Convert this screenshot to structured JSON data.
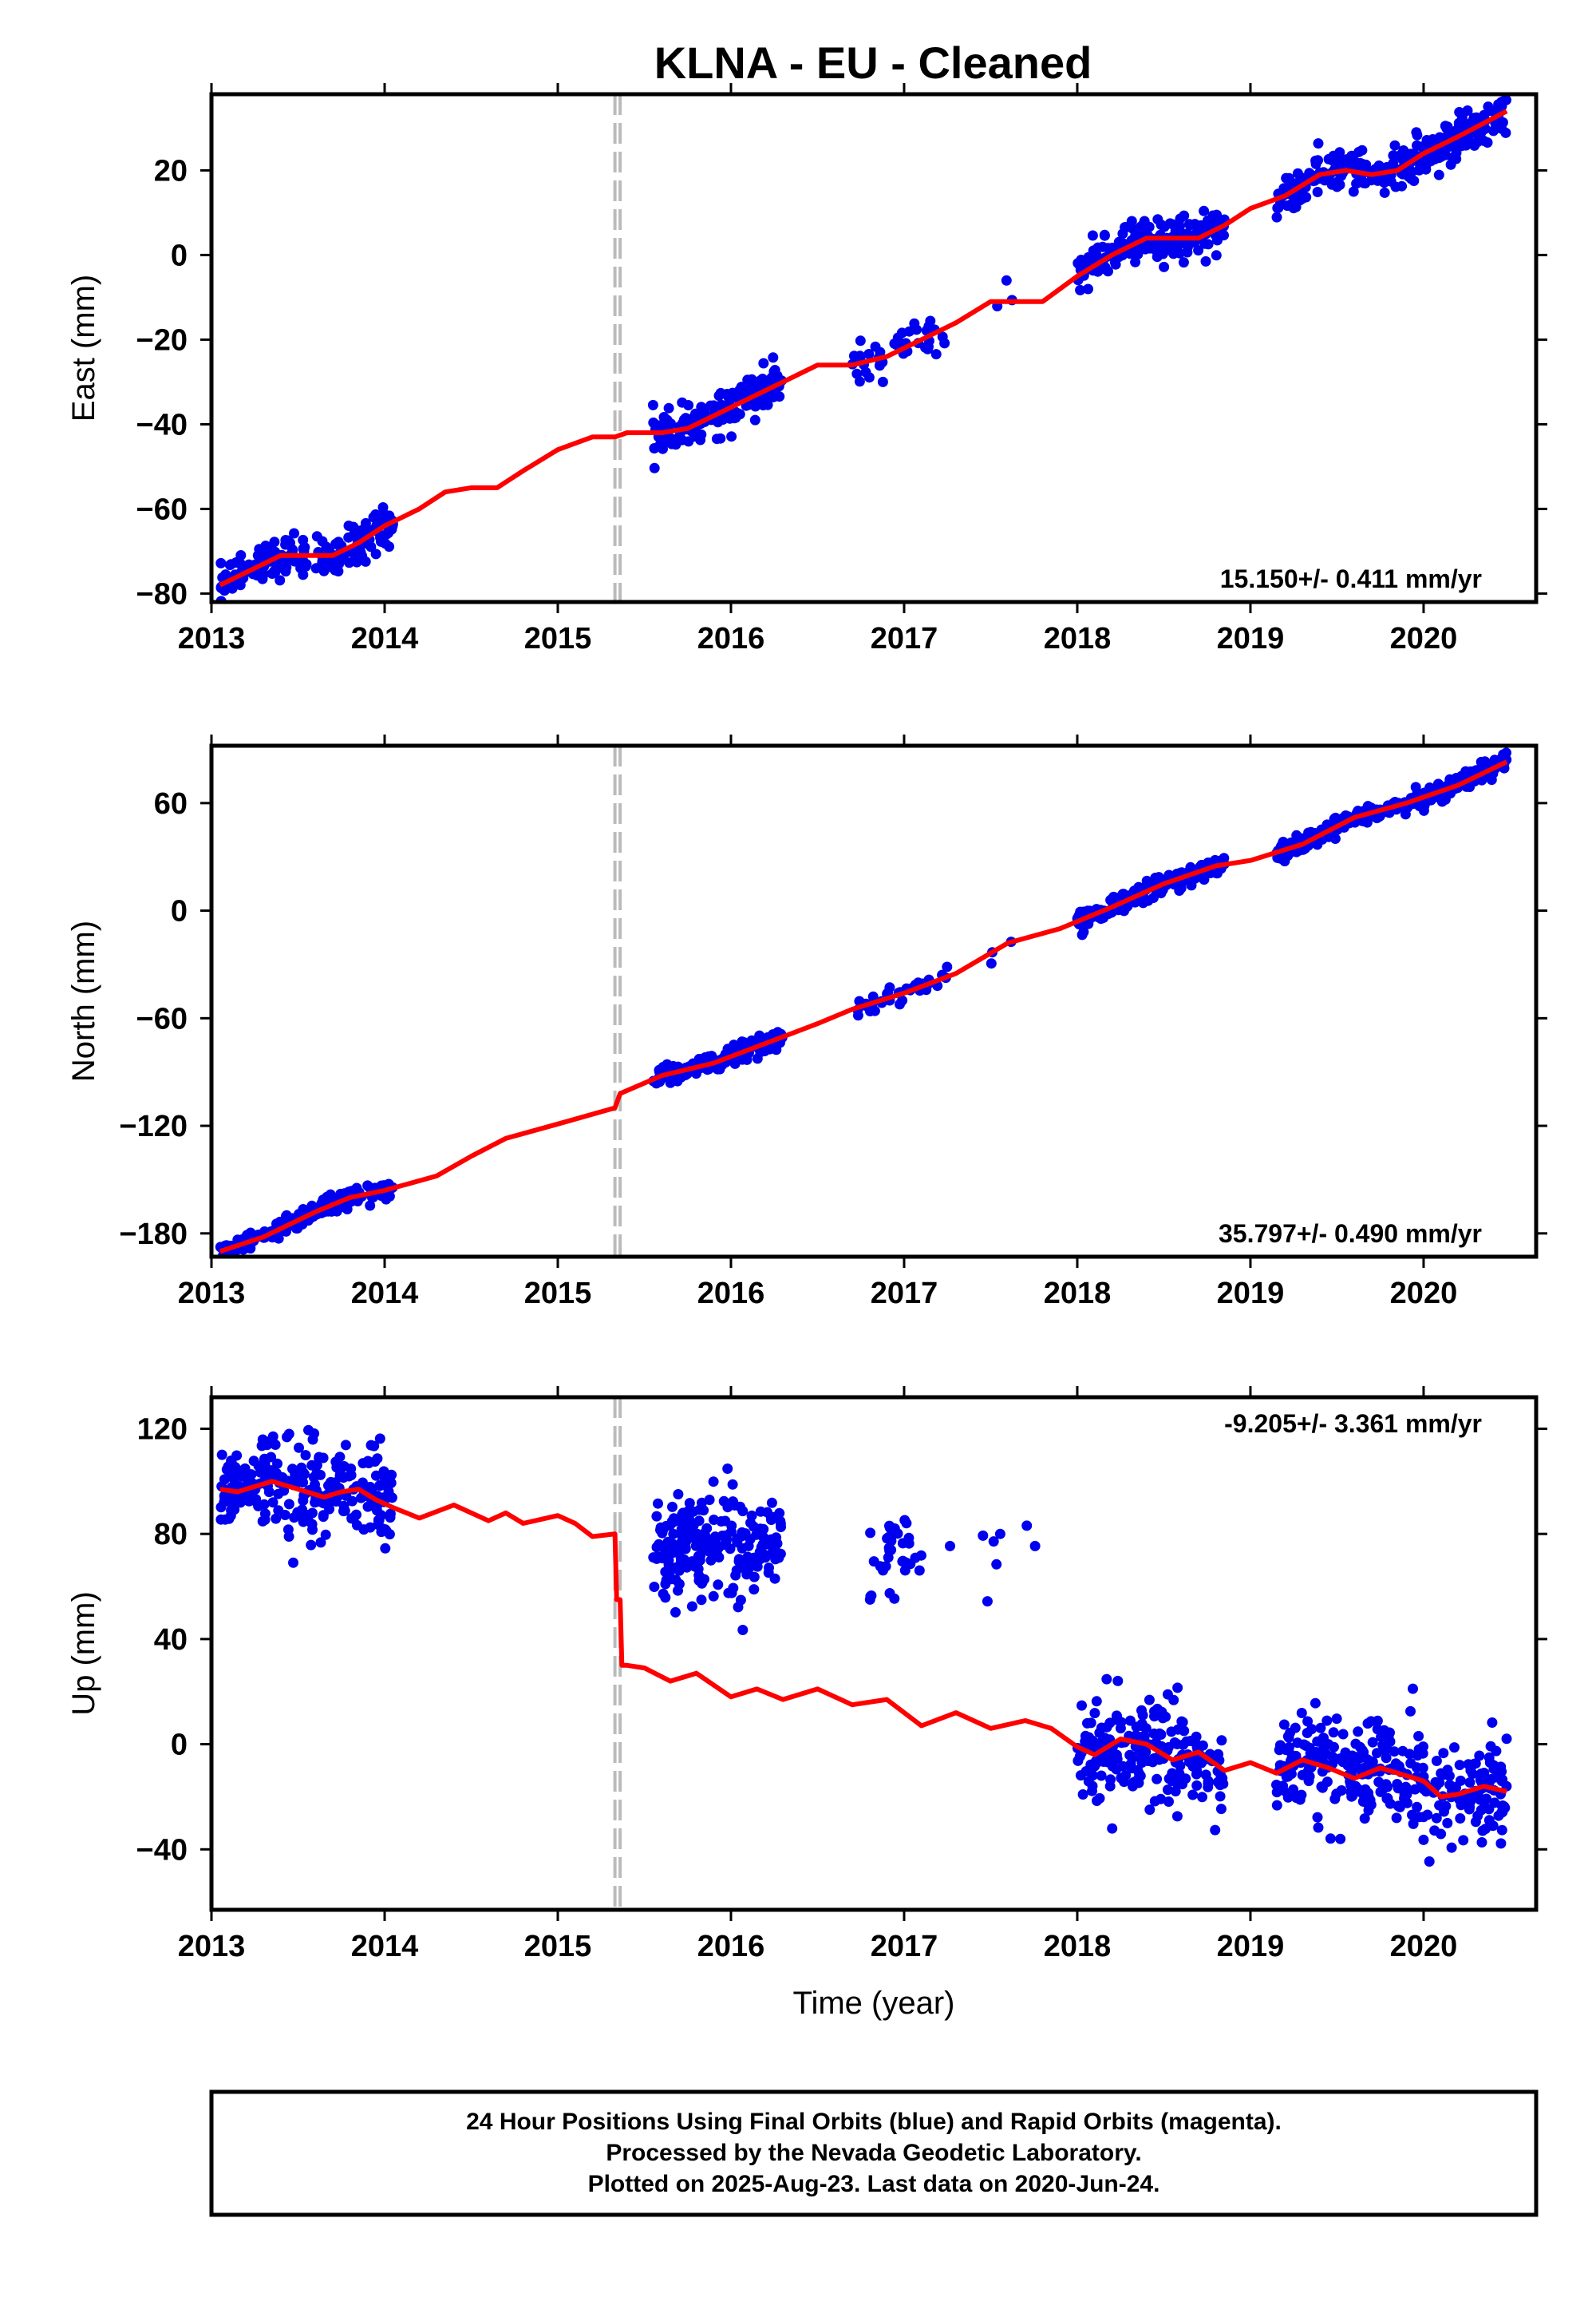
{
  "figure": {
    "title": "KLNA  - EU - Cleaned",
    "footer": {
      "lines": [
        "24 Hour Positions Using Final Orbits (blue) and Rapid Orbits (magenta).",
        "Processed by the Nevada Geodetic Laboratory.",
        "Plotted on 2025-Aug-23. Last data on 2020-Jun-24."
      ]
    },
    "colors": {
      "data_points": "#0000ee",
      "model_fit": "#ff0000",
      "equipment_change": "#bbbbbb"
    }
  },
  "chart_data": [
    {
      "type": "scatter",
      "component": "East",
      "title": "",
      "xlabel": "",
      "ylabel": "East (mm)",
      "xlim": [
        2013.0,
        2020.65
      ],
      "ylim": [
        -82,
        38
      ],
      "xticks": [
        "2013",
        "2014",
        "2015",
        "2016",
        "2017",
        "2018",
        "2019",
        "2020"
      ],
      "yticks": [
        -80,
        -60,
        -40,
        -20,
        0,
        20
      ],
      "ytick_labels": [
        "−80",
        "−60",
        "−40",
        "−20",
        "0",
        "20"
      ],
      "grid": false,
      "rate_annotation": "15.150+/- 0.411 mm/yr",
      "rate_position": "bottom-right",
      "vertical_dashed_lines_x": [
        2015.33,
        2015.36
      ],
      "data_segments": [
        {
          "t0": 2013.05,
          "t1": 2014.05,
          "n": 190
        },
        {
          "t0": 2015.55,
          "t1": 2016.3,
          "n": 170
        },
        {
          "t0": 2016.7,
          "t1": 2017.25,
          "n": 40
        },
        {
          "t0": 2017.5,
          "t1": 2017.65,
          "n": 3
        },
        {
          "t0": 2018.0,
          "t1": 2018.85,
          "n": 200
        },
        {
          "t0": 2019.15,
          "t1": 2020.48,
          "n": 300
        }
      ],
      "model": {
        "x": [
          2013.05,
          2013.2,
          2013.4,
          2013.55,
          2013.7,
          2013.85,
          2014.0,
          2014.2,
          2014.35,
          2014.5,
          2014.65,
          2014.8,
          2015.0,
          2015.2,
          2015.33,
          2015.4,
          2015.6,
          2015.75,
          2015.9,
          2016.1,
          2016.3,
          2016.5,
          2016.7,
          2016.9,
          2017.1,
          2017.3,
          2017.5,
          2017.65,
          2017.8,
          2018.0,
          2018.2,
          2018.4,
          2018.5,
          2018.7,
          2018.85,
          2019.0,
          2019.2,
          2019.4,
          2019.55,
          2019.7,
          2019.85,
          2020.0,
          2020.2,
          2020.48
        ],
        "y": [
          -78,
          -75,
          -71,
          -71,
          -71,
          -68,
          -64,
          -60,
          -56,
          -55,
          -55,
          -51,
          -46,
          -43,
          -43,
          -42,
          -42,
          -41,
          -38,
          -34,
          -30,
          -26,
          -26,
          -24,
          -20,
          -16,
          -11,
          -11,
          -11,
          -5,
          0,
          4,
          4,
          4,
          7,
          11,
          14,
          19,
          20,
          19,
          20,
          24,
          28,
          34
        ]
      }
    },
    {
      "type": "scatter",
      "component": "North",
      "title": "",
      "xlabel": "",
      "ylabel": "North (mm)",
      "xlim": [
        2013.0,
        2020.65
      ],
      "ylim": [
        -193,
        92
      ],
      "xticks": [
        "2013",
        "2014",
        "2015",
        "2016",
        "2017",
        "2018",
        "2019",
        "2020"
      ],
      "yticks": [
        -180,
        -120,
        -60,
        0,
        60
      ],
      "ytick_labels": [
        "−180",
        "−120",
        "−60",
        "0",
        "60"
      ],
      "grid": false,
      "rate_annotation": "35.797+/- 0.490 mm/yr",
      "rate_position": "bottom-right",
      "vertical_dashed_lines_x": [
        2015.33,
        2015.36
      ],
      "data_segments": [
        {
          "t0": 2013.05,
          "t1": 2014.05,
          "n": 190
        },
        {
          "t0": 2015.55,
          "t1": 2016.3,
          "n": 170
        },
        {
          "t0": 2016.7,
          "t1": 2017.25,
          "n": 40
        },
        {
          "t0": 2017.5,
          "t1": 2017.65,
          "n": 3
        },
        {
          "t0": 2018.0,
          "t1": 2018.85,
          "n": 200
        },
        {
          "t0": 2019.15,
          "t1": 2020.48,
          "n": 300
        }
      ],
      "model": {
        "x": [
          2013.05,
          2013.3,
          2013.6,
          2013.8,
          2014.0,
          2014.3,
          2014.5,
          2014.7,
          2015.0,
          2015.33,
          2015.36,
          2015.6,
          2015.9,
          2016.2,
          2016.5,
          2016.7,
          2017.0,
          2017.3,
          2017.6,
          2017.9,
          2018.2,
          2018.5,
          2018.8,
          2019.0,
          2019.3,
          2019.6,
          2019.9,
          2020.2,
          2020.48
        ],
        "y": [
          -190,
          -182,
          -168,
          -160,
          -156,
          -148,
          -137,
          -127,
          -119,
          -110,
          -102,
          -92,
          -85,
          -74,
          -63,
          -55,
          -46,
          -35,
          -18,
          -10,
          2,
          15,
          25,
          28,
          37,
          52,
          60,
          70,
          83
        ]
      }
    },
    {
      "type": "scatter",
      "component": "Up",
      "title": "",
      "xlabel": "Time (year)",
      "ylabel": "Up (mm)",
      "xlim": [
        2013.0,
        2020.65
      ],
      "ylim": [
        -63,
        132
      ],
      "xticks": [
        "2013",
        "2014",
        "2015",
        "2016",
        "2017",
        "2018",
        "2019",
        "2020"
      ],
      "yticks": [
        -40,
        0,
        40,
        80,
        120
      ],
      "ytick_labels": [
        "−40",
        "0",
        "40",
        "80",
        "120"
      ],
      "grid": false,
      "rate_annotation": "-9.205+/- 3.361 mm/yr",
      "rate_position": "top-right",
      "vertical_dashed_lines_x": [
        2015.33,
        2015.36
      ],
      "data_segments": [
        {
          "t0": 2013.05,
          "t1": 2014.05,
          "n": 250
        },
        {
          "t0": 2015.55,
          "t1": 2016.3,
          "n": 220
        },
        {
          "t0": 2016.8,
          "t1": 2017.1,
          "n": 35
        },
        {
          "t0": 2017.15,
          "t1": 2017.9,
          "n": 8
        },
        {
          "t0": 2018.0,
          "t1": 2018.85,
          "n": 220
        },
        {
          "t0": 2019.15,
          "t1": 2020.48,
          "n": 320
        }
      ],
      "model": {
        "x": [
          2013.05,
          2013.15,
          2013.25,
          2013.35,
          2013.45,
          2013.55,
          2013.65,
          2013.75,
          2013.85,
          2013.95,
          2014.05,
          2014.2,
          2014.4,
          2014.6,
          2014.7,
          2014.8,
          2015.0,
          2015.1,
          2015.2,
          2015.33,
          2015.34,
          2015.36,
          2015.37,
          2015.4,
          2015.5,
          2015.65,
          2015.8,
          2016.0,
          2016.15,
          2016.3,
          2016.5,
          2016.7,
          2016.9,
          2017.1,
          2017.3,
          2017.5,
          2017.7,
          2017.85,
          2018.0,
          2018.1,
          2018.25,
          2018.4,
          2018.55,
          2018.7,
          2018.85,
          2019.0,
          2019.15,
          2019.3,
          2019.45,
          2019.6,
          2019.75,
          2019.9,
          2020.0,
          2020.1,
          2020.2,
          2020.35,
          2020.48
        ],
        "y": [
          97,
          96,
          98,
          100,
          98,
          96,
          94,
          96,
          97,
          93,
          90,
          86,
          91,
          85,
          88,
          84,
          87,
          84,
          79,
          80,
          55,
          55,
          30,
          30,
          29,
          24,
          27,
          18,
          21,
          17,
          21,
          15,
          17,
          7,
          12,
          6,
          9,
          6,
          -1,
          -4,
          2,
          0,
          -6,
          -3,
          -10,
          -7,
          -11,
          -6,
          -9,
          -13,
          -9,
          -12,
          -14,
          -20,
          -19,
          -16,
          -18
        ]
      }
    }
  ]
}
